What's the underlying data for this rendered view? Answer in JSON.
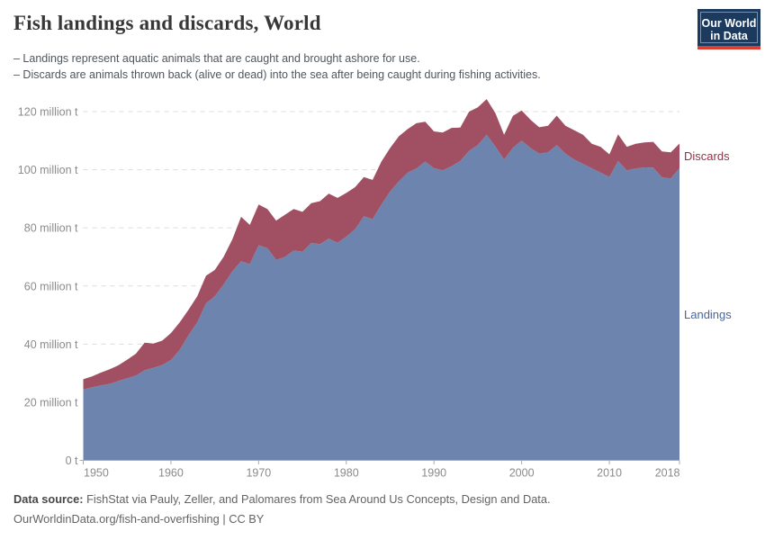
{
  "header": {
    "title": "Fish landings and discards, World",
    "subtitle_line1": "– Landings represent aquatic animals that are caught and brought ashore for use.",
    "subtitle_line2": "– Discards are animals thrown back (alive or dead) into the sea after being caught during fishing activities.",
    "logo_line1": "Our World",
    "logo_line2": "in Data",
    "logo_bg_color": "#1b3a5e",
    "logo_bar_color": "#dc3f34"
  },
  "footer": {
    "source_label": "Data source:",
    "source_text": " FishStat via Pauly, Zeller, and Palomares from Sea Around Us Concepts, Design and Data.",
    "line2_url": "OurWorldinData.org/fish-and-overfishing",
    "line2_rest": " | CC BY"
  },
  "chart_data": {
    "type": "area",
    "stacked": true,
    "title": "Fish landings and discards, World",
    "xlabel": "",
    "ylabel": "",
    "ylim": [
      0,
      120
    ],
    "xlim": [
      1950,
      2018
    ],
    "grid": "dashed-horizontal",
    "legend_position": "right-of-plot",
    "unit": "million t",
    "y_ticks": [
      {
        "value": 0,
        "label": "0 t"
      },
      {
        "value": 20,
        "label": "20 million t"
      },
      {
        "value": 40,
        "label": "40 million t"
      },
      {
        "value": 60,
        "label": "60 million t"
      },
      {
        "value": 80,
        "label": "80 million t"
      },
      {
        "value": 100,
        "label": "100 million t"
      },
      {
        "value": 120,
        "label": "120 million t"
      }
    ],
    "x_ticks": [
      {
        "year": 1950,
        "label": "1950",
        "anchor": "start"
      },
      {
        "year": 1960,
        "label": "1960",
        "anchor": "middle"
      },
      {
        "year": 1970,
        "label": "1970",
        "anchor": "middle"
      },
      {
        "year": 1980,
        "label": "1980",
        "anchor": "middle"
      },
      {
        "year": 1990,
        "label": "1990",
        "anchor": "middle"
      },
      {
        "year": 2000,
        "label": "2000",
        "anchor": "middle"
      },
      {
        "year": 2010,
        "label": "2010",
        "anchor": "middle"
      },
      {
        "year": 2018,
        "label": "2018",
        "anchor": "end"
      }
    ],
    "years": [
      1950,
      1951,
      1952,
      1953,
      1954,
      1955,
      1956,
      1957,
      1958,
      1959,
      1960,
      1961,
      1962,
      1963,
      1964,
      1965,
      1966,
      1967,
      1968,
      1969,
      1970,
      1971,
      1972,
      1973,
      1974,
      1975,
      1976,
      1977,
      1978,
      1979,
      1980,
      1981,
      1982,
      1983,
      1984,
      1985,
      1986,
      1987,
      1988,
      1989,
      1990,
      1991,
      1992,
      1993,
      1994,
      1995,
      1996,
      1997,
      1998,
      1999,
      2000,
      2001,
      2002,
      2003,
      2004,
      2005,
      2006,
      2007,
      2008,
      2009,
      2010,
      2011,
      2012,
      2013,
      2014,
      2015,
      2016,
      2017,
      2018
    ],
    "series": [
      {
        "name": "Landings",
        "color": "#6d84ae",
        "label_color": "#47669e",
        "values": [
          24.4,
          25.1,
          25.8,
          26.3,
          27.3,
          28.2,
          29.2,
          31,
          31.8,
          32.8,
          34.5,
          38,
          43,
          47.5,
          54,
          56.5,
          60.5,
          65,
          68.5,
          67.5,
          74,
          73,
          69,
          70,
          72.2,
          71.8,
          74.8,
          74.4,
          76.3,
          74.9,
          77,
          79.5,
          84,
          83,
          88,
          92.5,
          96,
          99,
          100.4,
          102.8,
          100.5,
          99.8,
          101.2,
          103,
          106.5,
          108.5,
          112,
          108,
          103.5,
          107.5,
          110,
          107.5,
          105.5,
          106,
          108.5,
          105.5,
          103.5,
          102,
          100.5,
          99,
          97.5,
          103,
          99.8,
          100.4,
          100.8,
          100.7,
          97.4,
          97,
          100.5
        ]
      },
      {
        "name": "Discards",
        "color": "#a05062",
        "label_color": "#8e3349",
        "values": [
          3.5,
          3.8,
          4.4,
          5,
          5.4,
          6.4,
          7.5,
          9.5,
          8.4,
          8.4,
          9.3,
          9.5,
          8.8,
          9,
          9.5,
          9,
          9.5,
          11,
          15.3,
          13.5,
          14,
          13.5,
          13.5,
          14.5,
          14.3,
          13.7,
          13.7,
          14.8,
          15.5,
          15.4,
          15,
          14.5,
          13.5,
          13.5,
          14.8,
          15,
          15.5,
          15,
          15.6,
          13.7,
          12.7,
          13,
          13.2,
          11.5,
          13.5,
          13,
          12.3,
          11.5,
          8.5,
          11,
          10.4,
          9.7,
          9.1,
          9.1,
          10.1,
          9.6,
          10.1,
          10,
          8.4,
          8.9,
          7.8,
          9.2,
          8.1,
          8.5,
          8.6,
          8.9,
          8.9,
          9,
          8.5
        ]
      }
    ]
  }
}
